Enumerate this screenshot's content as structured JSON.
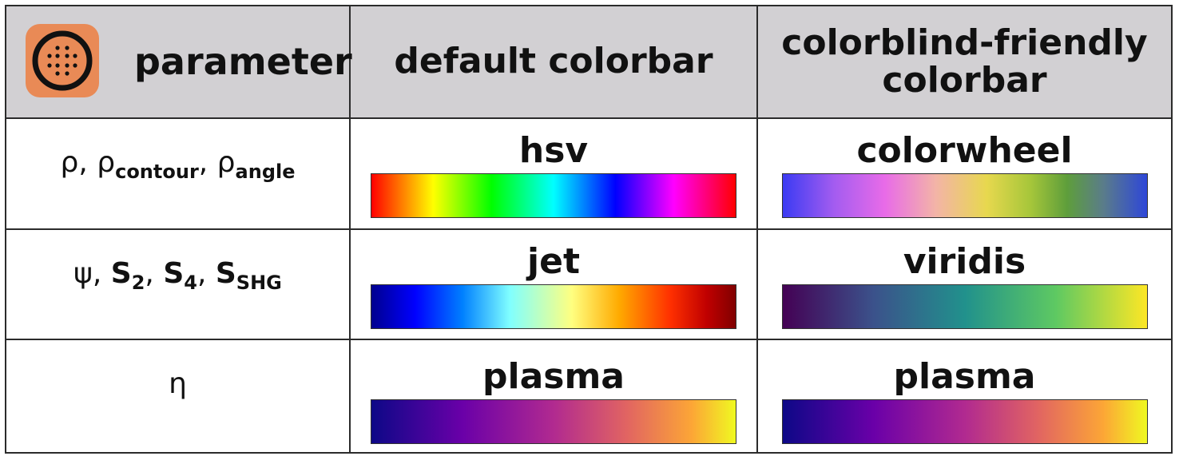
{
  "header": {
    "parameter": "parameter",
    "default_colorbar": "default colorbar",
    "cb_friendly_line1": "colorblind-friendly",
    "cb_friendly_line2": "colorbar"
  },
  "rows": [
    {
      "param": {
        "rho": "ρ",
        "sep1": ", ",
        "rho2": "ρ",
        "sub_contour": "contour",
        "sep2": ", ",
        "rho3": "ρ",
        "sub_angle": "angle"
      },
      "default": {
        "name": "hsv",
        "gradient": "hsv"
      },
      "friendly": {
        "name": "colorwheel",
        "gradient": "colorwheel"
      }
    },
    {
      "param": {
        "psi": "ψ",
        "sep1": ", ",
        "s": "S",
        "sub2": "2",
        "sep2": ", ",
        "s4": "S",
        "sub4": "4",
        "sep3": ", ",
        "s_shg": "S",
        "sub_shg": "SHG"
      },
      "default": {
        "name": "jet",
        "gradient": "jet"
      },
      "friendly": {
        "name": "viridis",
        "gradient": "viridis"
      }
    },
    {
      "param": {
        "eta": "η"
      },
      "default": {
        "name": "plasma",
        "gradient": "plasma"
      },
      "friendly": {
        "name": "plasma",
        "gradient": "plasma"
      }
    }
  ],
  "colors": {
    "header_bg": "#d2d0d3",
    "app_icon_bg": "#e98a56",
    "border": "#2b2b2b"
  },
  "icons": {
    "app": "app-logo-icon"
  }
}
